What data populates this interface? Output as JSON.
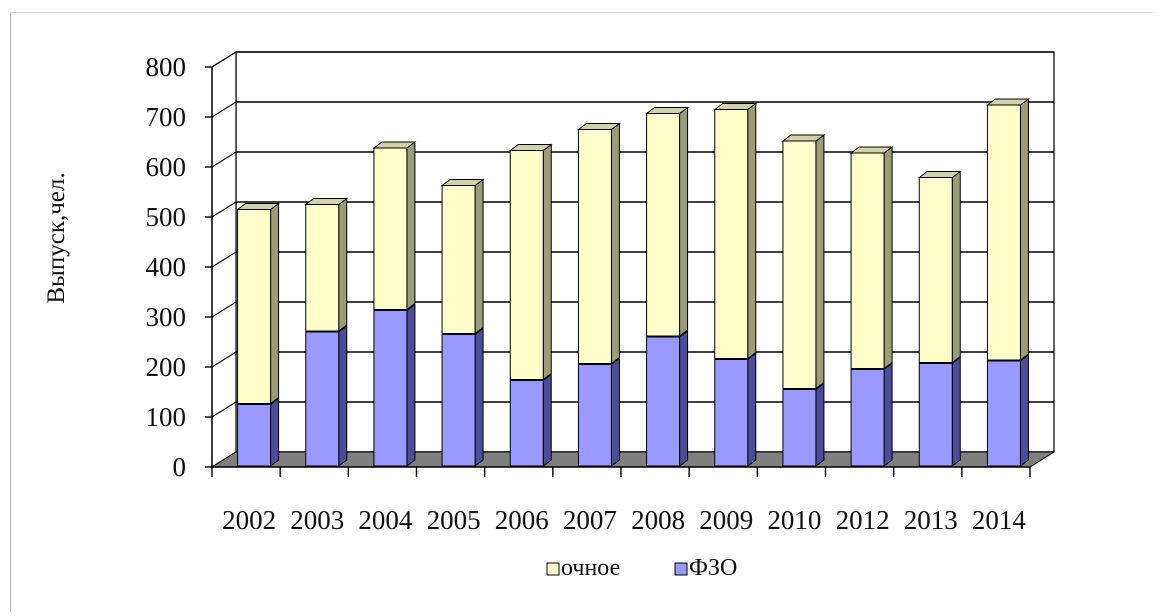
{
  "chart_data": {
    "type": "bar",
    "stacked": true,
    "three_d": true,
    "title": "",
    "xlabel": "",
    "ylabel": "Выпуск,чел.",
    "ylim": [
      0,
      800
    ],
    "yticks": [
      "0",
      "100",
      "200",
      "300",
      "400",
      "500",
      "600",
      "700",
      "800"
    ],
    "grid": true,
    "legend_position": "bottom",
    "categories": [
      "2002",
      "2003",
      "2004",
      "2005",
      "2006",
      "2007",
      "2008",
      "2009",
      "2010",
      "2012",
      "2013",
      "2014"
    ],
    "series": [
      {
        "name": "ФЗО",
        "color": "#9999ff",
        "values": [
          125,
          270,
          313,
          265,
          173,
          205,
          260,
          215,
          155,
          195,
          207,
          212
        ]
      },
      {
        "name": "очное",
        "color": "#ffffcc",
        "values": [
          390,
          255,
          325,
          298,
          460,
          470,
          447,
          500,
          497,
          433,
          372,
          512
        ]
      }
    ],
    "legend_order": [
      "очное",
      "ФЗО"
    ]
  }
}
